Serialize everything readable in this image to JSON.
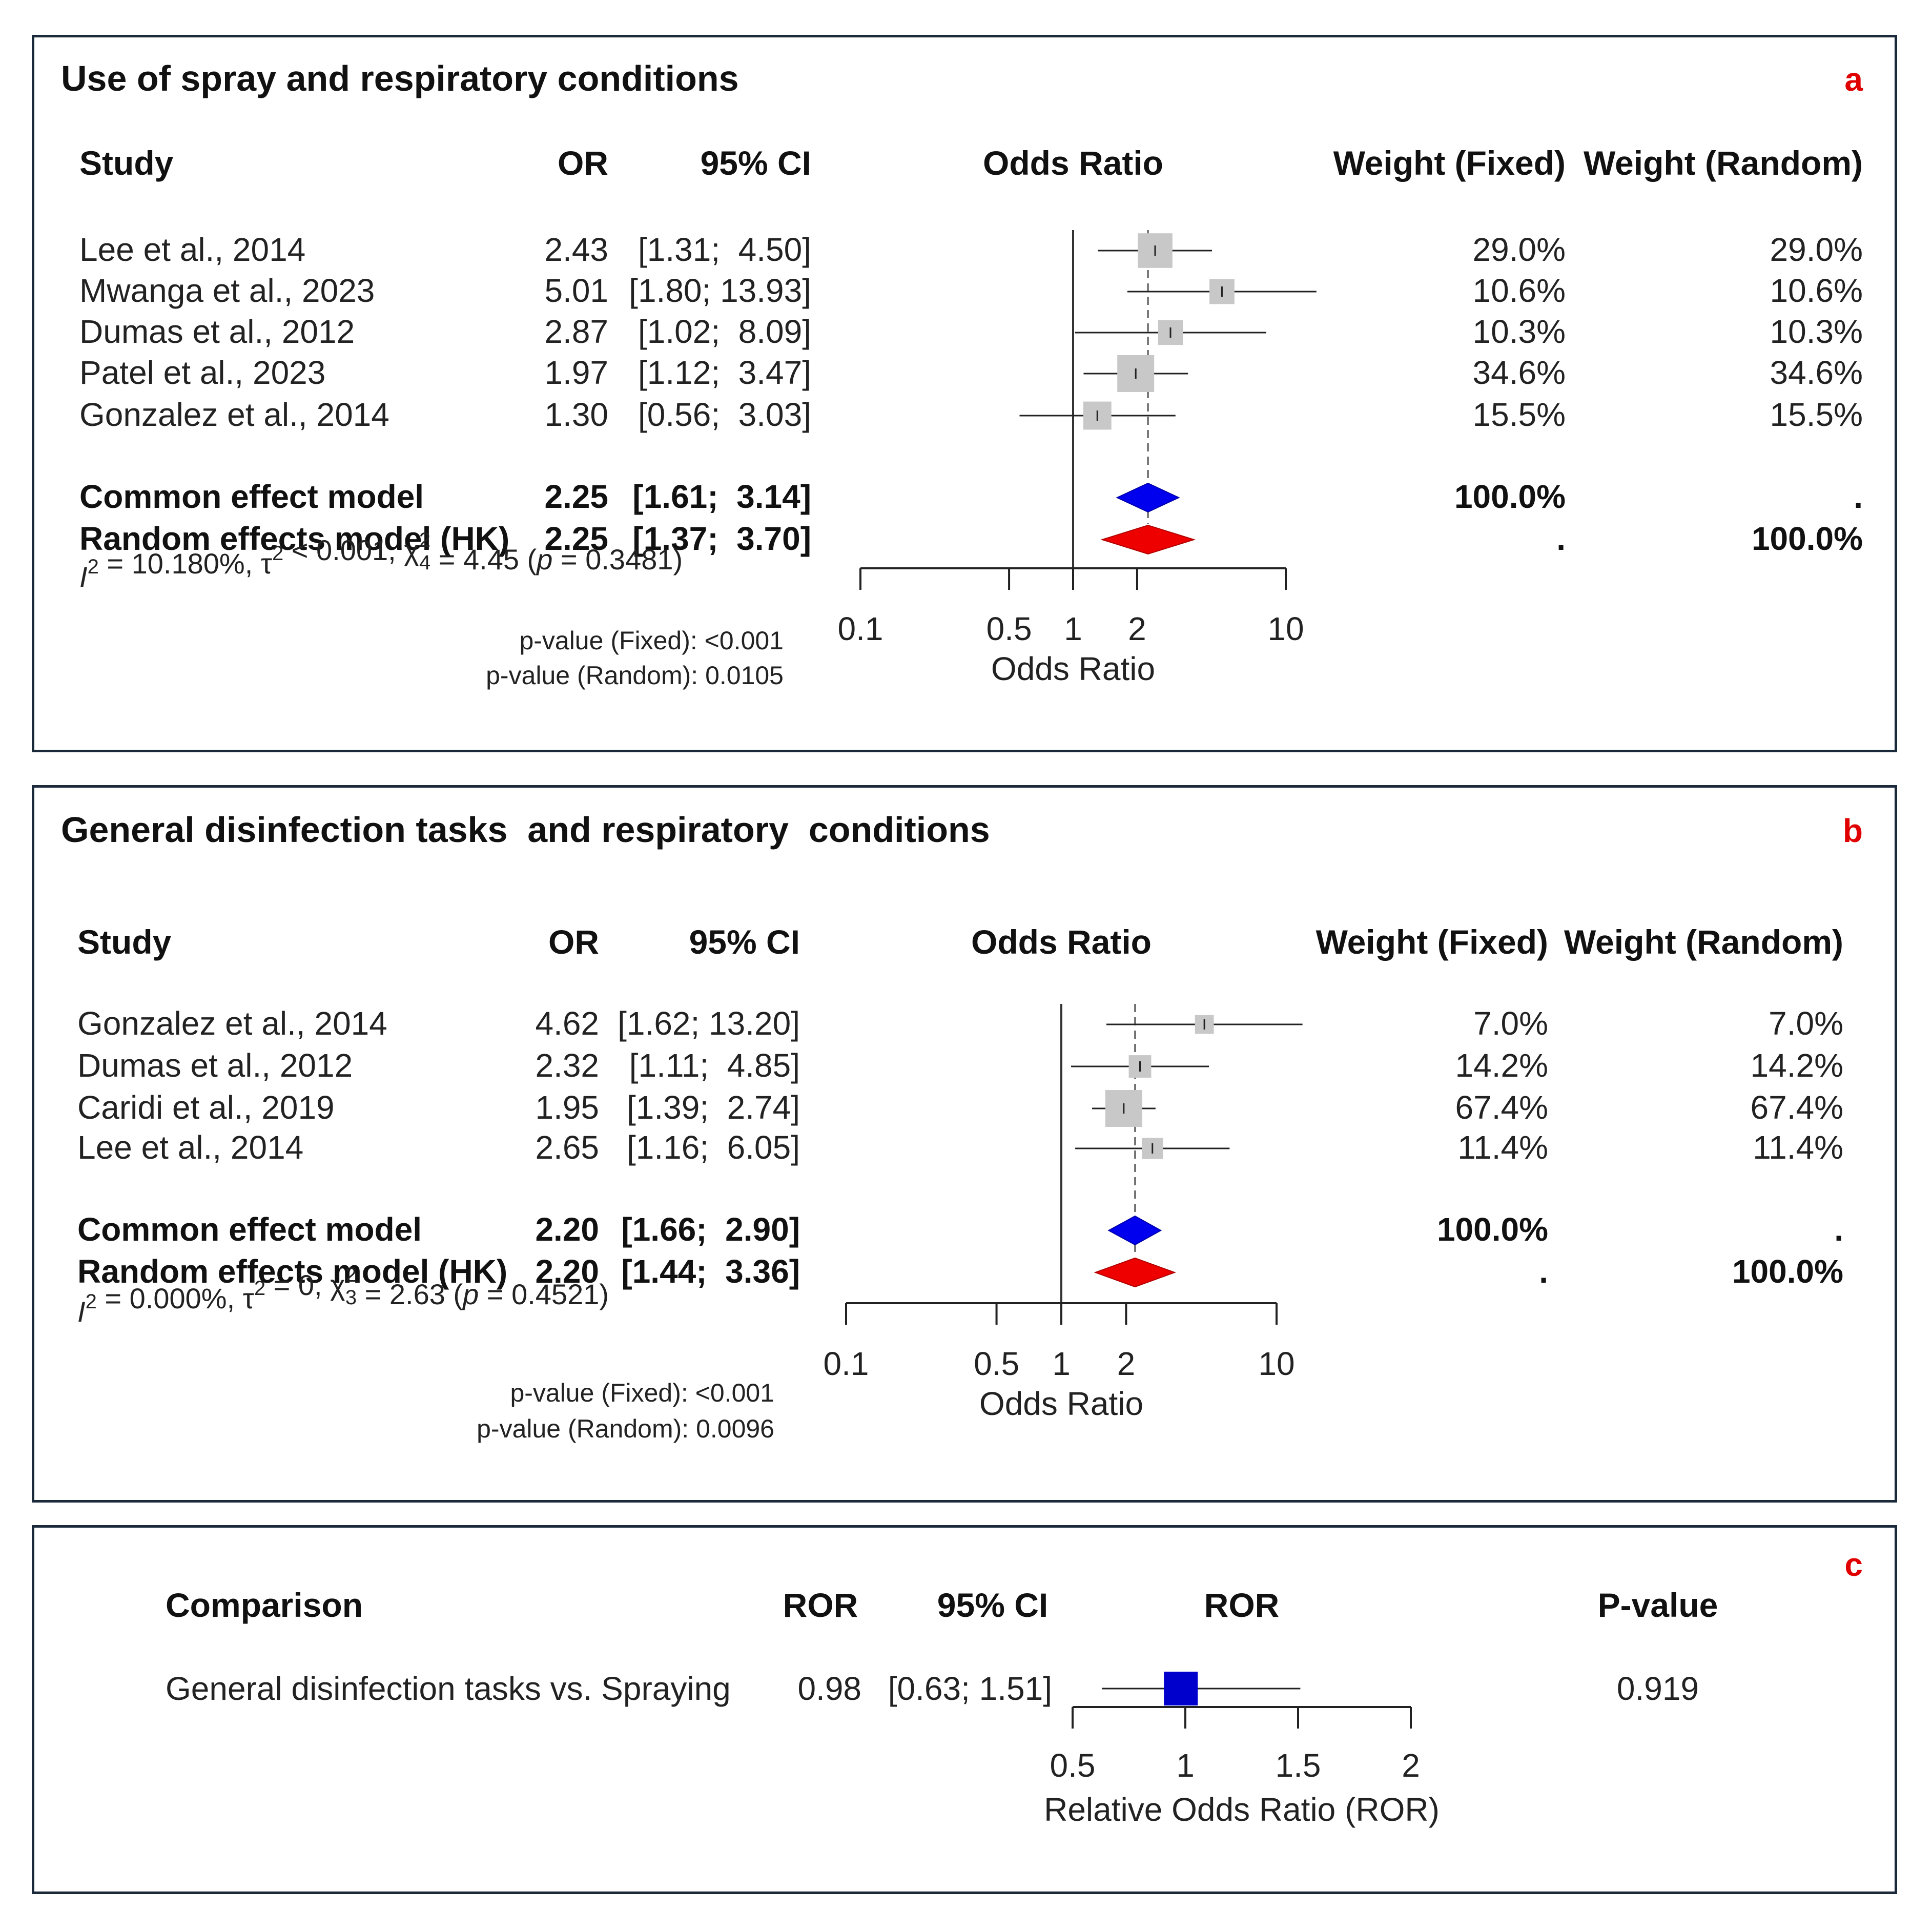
{
  "panels": [
    {
      "letter": "a",
      "title": "Use of spray and respiratory conditions",
      "headers": {
        "study": "Study",
        "or": "OR",
        "ci": "95% CI",
        "plot": "Odds Ratio",
        "wf": "Weight (Fixed)",
        "wr": "Weight (Random)"
      },
      "studies": [
        {
          "study": "Lee et al., 2014",
          "or_text": "2.43",
          "ci_text": "[1.31;  4.50]",
          "wf": "29.0%",
          "wr": "29.0%"
        },
        {
          "study": "Mwanga et al., 2023",
          "or_text": "5.01",
          "ci_text": "[1.80; 13.93]",
          "wf": "10.6%",
          "wr": "10.6%"
        },
        {
          "study": "Dumas et al., 2012",
          "or_text": "2.87",
          "ci_text": "[1.02;  8.09]",
          "wf": "10.3%",
          "wr": "10.3%"
        },
        {
          "study": "Patel et al., 2023",
          "or_text": "1.97",
          "ci_text": "[1.12;  3.47]",
          "wf": "34.6%",
          "wr": "34.6%"
        },
        {
          "study": "Gonzalez et al., 2014",
          "or_text": "1.30",
          "ci_text": "[0.56;  3.03]",
          "wf": "15.5%",
          "wr": "15.5%"
        }
      ],
      "models": [
        {
          "label": "Common effect model",
          "or_text": "2.25",
          "ci_text": "[1.61;  3.14]",
          "wf": "100.0%",
          "wr": "."
        },
        {
          "label": "Random effects model (HK)",
          "or_text": "2.25",
          "ci_text": "[1.37;  3.70]",
          "wf": ".",
          "wr": "100.0%"
        }
      ],
      "heterogeneity": {
        "i2": "= 10.180%, ",
        "tau": "< 0.001, ",
        "df": "4",
        "chi": "= 4.45 (",
        "p": " = 0.3481)"
      },
      "pvalues": {
        "fixed": "p-value (Fixed): <0.001",
        "random": "p-value (Random): 0.0105"
      },
      "axis": {
        "ticks": [
          "0.1",
          "0.5",
          "1",
          "2",
          "10"
        ],
        "label": "Odds Ratio"
      }
    },
    {
      "letter": "b",
      "title": "General disinfection tasks  and respiratory  conditions",
      "headers": {
        "study": "Study",
        "or": "OR",
        "ci": "95% CI",
        "plot": "Odds Ratio",
        "wf": "Weight (Fixed)",
        "wr": "Weight (Random)"
      },
      "studies": [
        {
          "study": "Gonzalez et al., 2014",
          "or_text": "4.62",
          "ci_text": "[1.62; 13.20]",
          "wf": "7.0%",
          "wr": "7.0%"
        },
        {
          "study": "Dumas et al., 2012",
          "or_text": "2.32",
          "ci_text": "[1.11;  4.85]",
          "wf": "14.2%",
          "wr": "14.2%"
        },
        {
          "study": "Caridi et al., 2019",
          "or_text": "1.95",
          "ci_text": "[1.39;  2.74]",
          "wf": "67.4%",
          "wr": "67.4%"
        },
        {
          "study": "Lee et al., 2014",
          "or_text": "2.65",
          "ci_text": "[1.16;  6.05]",
          "wf": "11.4%",
          "wr": "11.4%"
        }
      ],
      "models": [
        {
          "label": "Common effect model",
          "or_text": "2.20",
          "ci_text": "[1.66;  2.90]",
          "wf": "100.0%",
          "wr": "."
        },
        {
          "label": "Random effects model (HK)",
          "or_text": "2.20",
          "ci_text": "[1.44;  3.36]",
          "wf": ".",
          "wr": "100.0%"
        }
      ],
      "heterogeneity": {
        "i2": "= 0.000%, ",
        "tau": "= 0, ",
        "df": "3",
        "chi": "= 2.63 (",
        "p": " = 0.4521)"
      },
      "pvalues": {
        "fixed": "p-value (Fixed): <0.001",
        "random": "p-value (Random): 0.0096"
      },
      "axis": {
        "ticks": [
          "0.1",
          "0.5",
          "1",
          "2",
          "10"
        ],
        "label": "Odds Ratio"
      }
    }
  ],
  "panel_c": {
    "letter": "c",
    "headers": {
      "comparison": "Comparison",
      "ror": "ROR",
      "ci": "95% CI",
      "plot": "ROR",
      "p": "P-value"
    },
    "row": {
      "comparison": "General disinfection tasks vs. Spraying",
      "ror_text": "0.98",
      "ci_text": "[0.63; 1.51]",
      "p": "0.919"
    },
    "axis": {
      "ticks": [
        "0.5",
        "1",
        "1.5",
        "2"
      ],
      "label": "Relative Odds Ratio (ROR)"
    }
  },
  "colors": {
    "common_diamond": "#0000ee",
    "random_diamond": "#ee0000",
    "study_square": "#c8c8c8",
    "ror_square": "#0000cc",
    "letter": "#e00000"
  },
  "chart_data": [
    {
      "type": "forest",
      "title": "Use of spray and respiratory conditions",
      "xscale": "log",
      "xlim": [
        0.1,
        10
      ],
      "xlabel": "Odds Ratio",
      "null_value": 1,
      "studies": [
        {
          "name": "Lee et al., 2014",
          "or": 2.43,
          "lo": 1.31,
          "hi": 4.5,
          "weight": 29.0
        },
        {
          "name": "Mwanga et al., 2023",
          "or": 5.01,
          "lo": 1.8,
          "hi": 13.93,
          "weight": 10.6
        },
        {
          "name": "Dumas et al., 2012",
          "or": 2.87,
          "lo": 1.02,
          "hi": 8.09,
          "weight": 10.3
        },
        {
          "name": "Patel et al., 2023",
          "or": 1.97,
          "lo": 1.12,
          "hi": 3.47,
          "weight": 34.6
        },
        {
          "name": "Gonzalez et al., 2014",
          "or": 1.3,
          "lo": 0.56,
          "hi": 3.03,
          "weight": 15.5
        }
      ],
      "pooled": [
        {
          "name": "Common effect model",
          "or": 2.25,
          "lo": 1.61,
          "hi": 3.14
        },
        {
          "name": "Random effects model (HK)",
          "or": 2.25,
          "lo": 1.37,
          "hi": 3.7
        }
      ]
    },
    {
      "type": "forest",
      "title": "General disinfection tasks  and respiratory  conditions",
      "xscale": "log",
      "xlim": [
        0.1,
        10
      ],
      "xlabel": "Odds Ratio",
      "null_value": 1,
      "studies": [
        {
          "name": "Gonzalez et al., 2014",
          "or": 4.62,
          "lo": 1.62,
          "hi": 13.2,
          "weight": 7.0
        },
        {
          "name": "Dumas et al., 2012",
          "or": 2.32,
          "lo": 1.11,
          "hi": 4.85,
          "weight": 14.2
        },
        {
          "name": "Caridi et al., 2019",
          "or": 1.95,
          "lo": 1.39,
          "hi": 2.74,
          "weight": 67.4
        },
        {
          "name": "Lee et al., 2014",
          "or": 2.65,
          "lo": 1.16,
          "hi": 6.05,
          "weight": 11.4
        }
      ],
      "pooled": [
        {
          "name": "Common effect model",
          "or": 2.2,
          "lo": 1.66,
          "hi": 2.9
        },
        {
          "name": "Random effects model (HK)",
          "or": 2.2,
          "lo": 1.44,
          "hi": 3.36
        }
      ]
    },
    {
      "type": "forest",
      "title": "",
      "xscale": "linear",
      "xlim": [
        0.5,
        2
      ],
      "xlabel": "Relative Odds Ratio (ROR)",
      "studies": [
        {
          "name": "General disinfection tasks vs. Spraying",
          "or": 0.98,
          "lo": 0.63,
          "hi": 1.51,
          "p": 0.919
        }
      ]
    }
  ]
}
